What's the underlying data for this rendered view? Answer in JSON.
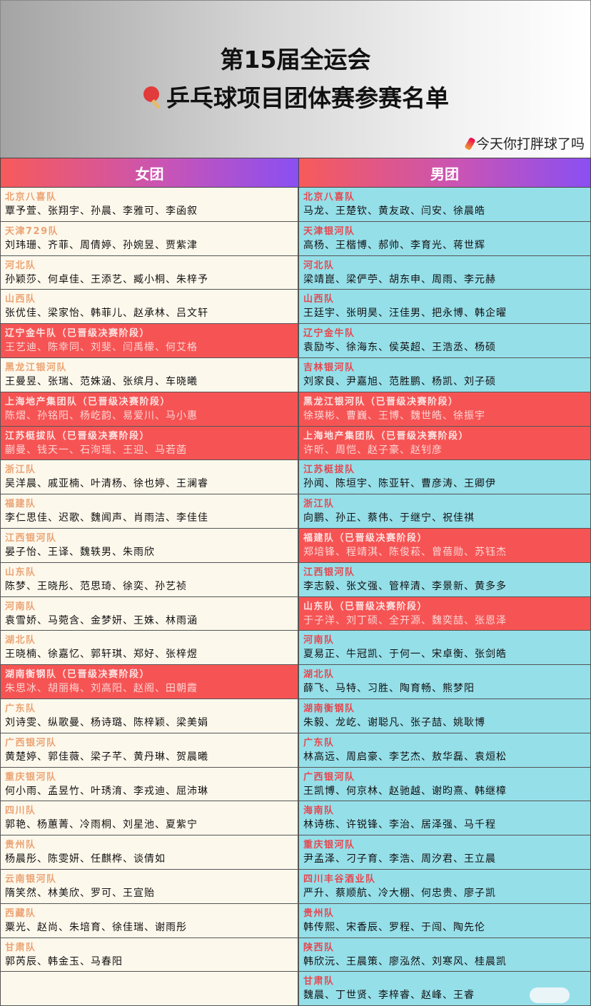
{
  "title_line1": "第15届全运会",
  "title_line2": "乒乓球项目团体赛参赛名单",
  "watermark": "今天你打胖球了吗",
  "columns": {
    "women": "女团",
    "men": "男团"
  },
  "colors": {
    "women_bg": "#fdf8ec",
    "men_bg": "#95dfe9",
    "qualified_bg": "#f65454",
    "women_team_text": "#eba373",
    "men_team_text": "#e6474f"
  },
  "women": [
    {
      "team": "北京八喜队",
      "players": "覃予萱、张翔宇、孙晨、李雅可、李函叙",
      "qualified": false
    },
    {
      "team": "天津729队",
      "players": "刘玮珊、齐菲、周倩婷、孙婉昱、贾紫津",
      "qualified": false
    },
    {
      "team": "河北队",
      "players": "孙颖莎、何卓佳、王添艺、臧小桐、朱梓予",
      "qualified": false
    },
    {
      "team": "山西队",
      "players": "张优佳、梁家怡、韩菲儿、赵承林、吕文轩",
      "qualified": false
    },
    {
      "team": "辽宁金牛队（已晋级决赛阶段）",
      "players": "王艺迪、陈幸同、刘斐、闫禹檬、何艾格",
      "qualified": true
    },
    {
      "team": "黑龙江银河队",
      "players": "王曼昱、张瑞、范姝涵、张缤月、车晓曦",
      "qualified": false
    },
    {
      "team": "上海地产集团队（已晋级决赛阶段）",
      "players": "陈熠、孙铭阳、杨屹韵、易爱川、马小惠",
      "qualified": true
    },
    {
      "team": "江苏梃拔队（已晋级决赛阶段）",
      "players": "蒯曼、钱天一、石洵瑶、王迎、马若菡",
      "qualified": true
    },
    {
      "team": "浙江队",
      "players": "吴洋晨、戚亚楠、叶清杨、徐也婷、王澜睿",
      "qualified": false
    },
    {
      "team": "福建队",
      "players": "李仁思佳、迟歌、魏闻声、肖雨洁、李佳佳",
      "qualified": false
    },
    {
      "team": "江西银河队",
      "players": "晏子怡、王译、魏轶男、朱雨欣",
      "qualified": false
    },
    {
      "team": "山东队",
      "players": "陈梦、王晓彤、范思琦、徐奕、孙艺祯",
      "qualified": false
    },
    {
      "team": "河南队",
      "players": "袁雪娇、马菀含、金梦妍、王姝、林雨涵",
      "qualified": false
    },
    {
      "team": "湖北队",
      "players": "王晓楠、徐嘉忆、郭轩琪、郑好、张梓煜",
      "qualified": false
    },
    {
      "team": "湖南衡钢队（已晋级决赛阶段）",
      "players": "朱思冰、胡丽梅、刘高阳、赵阁、田朝霞",
      "qualified": true
    },
    {
      "team": "广东队",
      "players": "刘诗雯、纵歌曼、杨诗璐、陈梓颖、梁美娟",
      "qualified": false
    },
    {
      "team": "广西银河队",
      "players": "黄楚婷、郭佳薇、梁子芊、黄丹琳、贺晨曦",
      "qualified": false
    },
    {
      "team": "重庆银河队",
      "players": "何小雨、孟昱竹、叶琇淯、李戎迪、屈沛琳",
      "qualified": false
    },
    {
      "team": "四川队",
      "players": "郭艳、杨蕙菁、冷雨桐、刘星池、夏紫宁",
      "qualified": false
    },
    {
      "team": "贵州队",
      "players": "杨晨彤、陈雯妍、任麒桦、谈倩如",
      "qualified": false
    },
    {
      "team": "云南银河队",
      "players": "隋笑然、林美欣、罗可、王宣贻",
      "qualified": false
    },
    {
      "team": "西藏队",
      "players": "粟光、赵尚、朱培育、徐佳瑞、谢雨彤",
      "qualified": false
    },
    {
      "team": "甘肃队",
      "players": "郭芮辰、韩金玉、马春阳",
      "qualified": false
    }
  ],
  "men": [
    {
      "team": "北京八喜队",
      "players": "马龙、王楚钦、黄友政、闫安、徐晨皓",
      "qualified": false
    },
    {
      "team": "天津银河队",
      "players": "高杨、王楷博、郝帅、李育光、蒋世辉",
      "qualified": false
    },
    {
      "team": "河北队",
      "players": "梁靖崑、梁俨苧、胡东申、周雨、李元赫",
      "qualified": false
    },
    {
      "team": "山西队",
      "players": "王廷宇、张明昊、汪佳男、把永博、韩企曜",
      "qualified": false
    },
    {
      "team": "辽宁金牛队",
      "players": "袁励岑、徐海东、侯英超、王浩丞、杨硕",
      "qualified": false
    },
    {
      "team": "吉林银河队",
      "players": "刘家良、尹嘉旭、范胜鹏、杨凯、刘子硕",
      "qualified": false
    },
    {
      "team": "黑龙江银河队（已晋级决赛阶段）",
      "players": "徐瑛彬、曹巍、王博、魏世皓、徐振宇",
      "qualified": true
    },
    {
      "team": "上海地产集团队（已晋级决赛阶段）",
      "players": "许昕、周恺、赵子豪、赵钊彦",
      "qualified": true
    },
    {
      "team": "江苏梃拔队",
      "players": "孙闻、陈垣宇、陈亚轩、曹彦涛、王卿伊",
      "qualified": false
    },
    {
      "team": "浙江队",
      "players": "向鹏、孙正、蔡伟、于继宁、祝佳祺",
      "qualified": false
    },
    {
      "team": "福建队（已晋级决赛阶段）",
      "players": "郑培锋、程靖淇、陈俊菘、曾蓓勋、苏钰杰",
      "qualified": true
    },
    {
      "team": "江西银河队",
      "players": "李志毅、张文强、管梓清、李景新、黄多多",
      "qualified": false
    },
    {
      "team": "山东队（已晋级决赛阶段）",
      "players": "于子洋、刘丁硕、全开源、魏奕喆、张恩泽",
      "qualified": true
    },
    {
      "team": "河南队",
      "players": "夏易正、牛冠凯、于何一、宋卓衡、张剑皓",
      "qualified": false
    },
    {
      "team": "湖北队",
      "players": "薛飞、马特、习胜、陶育畅、熊梦阳",
      "qualified": false
    },
    {
      "team": "湖南衡钢队",
      "players": "朱毅、龙屹、谢聪凡、张子喆、姚耿博",
      "qualified": false
    },
    {
      "team": "广东队",
      "players": "林高远、周启豪、李艺杰、敖华磊、袁烜松",
      "qualified": false
    },
    {
      "team": "广西银河队",
      "players": "王凯博、何京林、赵驰越、谢昀熹、韩继樟",
      "qualified": false
    },
    {
      "team": "海南队",
      "players": "林诗栋、许锐锋、李治、居泽强、马千程",
      "qualified": false
    },
    {
      "team": "重庆银河队",
      "players": "尹孟泽、刁子育、李浩、周汐君、王立晨",
      "qualified": false
    },
    {
      "team": "四川丰谷酒业队",
      "players": "严升、蔡顺航、冷大棚、何忠贵、廖子凯",
      "qualified": false
    },
    {
      "team": "贵州队",
      "players": "韩传熙、宋香辰、罗程、于闯、陶先伦",
      "qualified": false
    },
    {
      "team": "陕西队",
      "players": "韩欣沅、王晨策、廖泓然、刘寒风、桂晨凯",
      "qualified": false
    },
    {
      "team": "甘肃队",
      "players": "魏晨、丁世贤、李梓睿、赵峰、王睿",
      "qualified": false
    }
  ]
}
